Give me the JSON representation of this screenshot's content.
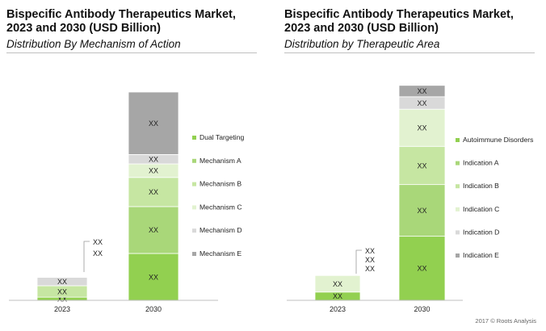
{
  "footer": "2017 © Roots Analysis",
  "colors": {
    "dark_green": "#92d050",
    "mid_green": "#a9d779",
    "light_green": "#c6e6a2",
    "pale_green": "#e2f2d0",
    "light_gray": "#d9d9d9",
    "dark_gray": "#a6a6a6"
  },
  "chart_data": [
    {
      "type": "bar",
      "stacked": true,
      "title": "Bispecific Antibody Therapeutics Market, 2023 and 2030 (USD Billion)",
      "subtitle": "Distribution By Mechanism of Action",
      "categories": [
        "2023",
        "2030"
      ],
      "value_label": "XX",
      "legend_position": "right",
      "series": [
        {
          "name": "Dual Targeting",
          "color": "#92d050",
          "values": [
            1.5,
            22.5
          ]
        },
        {
          "name": "Mechanism A",
          "color": "#a9d779",
          "values": [
            0,
            22.5
          ]
        },
        {
          "name": "Mechanism B",
          "color": "#c6e6a2",
          "values": [
            5.5,
            14
          ]
        },
        {
          "name": "Mechanism C",
          "color": "#e2f2d0",
          "values": [
            0,
            6.5
          ]
        },
        {
          "name": "Mechanism D",
          "color": "#d9d9d9",
          "values": [
            4,
            4.5
          ]
        },
        {
          "name": "Mechanism E",
          "color": "#a6a6a6",
          "values": [
            0,
            30
          ]
        }
      ],
      "ylim": [
        0,
        100
      ],
      "callout_labels": [
        "XX",
        "XX"
      ]
    },
    {
      "type": "bar",
      "stacked": true,
      "title": "Bispecific Antibody Therapeutics Market, 2023 and 2030 (USD Billion)",
      "subtitle": "Distribution by Therapeutic Area",
      "categories": [
        "2023",
        "2030"
      ],
      "value_label": "XX",
      "legend_position": "right",
      "series": [
        {
          "name": "Autoimmune Disorders",
          "color": "#92d050",
          "values": [
            4,
            31
          ]
        },
        {
          "name": "Indication A",
          "color": "#a9d779",
          "values": [
            0,
            25
          ]
        },
        {
          "name": "Indication B",
          "color": "#c6e6a2",
          "values": [
            0,
            18.5
          ]
        },
        {
          "name": "Indication C",
          "color": "#e2f2d0",
          "values": [
            8,
            18
          ]
        },
        {
          "name": "Indication D",
          "color": "#d9d9d9",
          "values": [
            0,
            6
          ]
        },
        {
          "name": "Indication E",
          "color": "#a6a6a6",
          "values": [
            0,
            5.5
          ]
        }
      ],
      "ylim": [
        0,
        100
      ],
      "callout_labels": [
        "XX",
        "XX",
        "XX"
      ]
    }
  ]
}
